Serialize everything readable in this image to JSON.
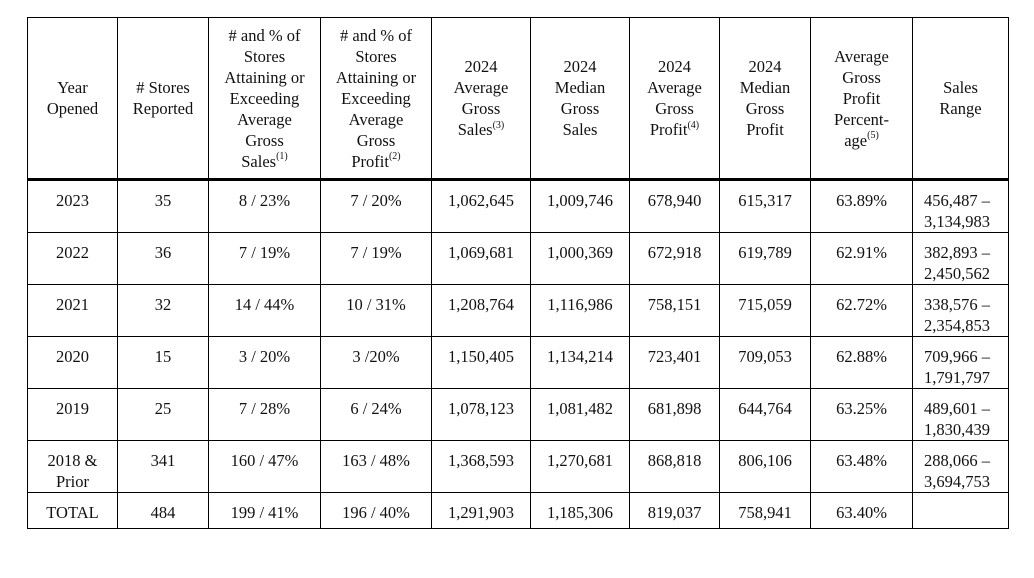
{
  "headers": [
    {
      "lines": [
        "Year",
        "Opened"
      ],
      "sup": ""
    },
    {
      "lines": [
        "# Stores",
        "Reported"
      ],
      "sup": ""
    },
    {
      "lines": [
        "# and % of",
        "Stores",
        "Attaining or",
        "Exceeding",
        "Average",
        "Gross",
        "Sales"
      ],
      "sup": "(1)"
    },
    {
      "lines": [
        "# and % of",
        "Stores",
        "Attaining or",
        "Exceeding",
        "Average",
        "Gross",
        "Profit"
      ],
      "sup": "(2)"
    },
    {
      "lines": [
        "2024",
        "Average",
        "Gross",
        "Sales"
      ],
      "sup": "(3)"
    },
    {
      "lines": [
        "2024",
        "Median",
        "Gross",
        "Sales"
      ],
      "sup": ""
    },
    {
      "lines": [
        "2024",
        "Average",
        "Gross",
        "Profit"
      ],
      "sup": "(4)"
    },
    {
      "lines": [
        "2024",
        "Median",
        "Gross",
        "Profit"
      ],
      "sup": ""
    },
    {
      "lines": [
        "Average",
        "Gross",
        "Profit",
        "Percent-",
        "age"
      ],
      "sup": "(5)"
    },
    {
      "lines": [
        "Sales",
        "Range"
      ],
      "sup": ""
    }
  ],
  "rows": [
    {
      "year": "2023",
      "stores": "35",
      "sales_attain": "8 / 23%",
      "profit_attain": "7 / 20%",
      "avg_sales": "1,062,645",
      "median_sales": "1,009,746",
      "avg_profit": "678,940",
      "median_profit": "615,317",
      "avg_pct": "63.89%",
      "range_low": "456,487 –",
      "range_high": "3,134,983"
    },
    {
      "year": "2022",
      "stores": "36",
      "sales_attain": "7 / 19%",
      "profit_attain": "7 / 19%",
      "avg_sales": "1,069,681",
      "median_sales": "1,000,369",
      "avg_profit": "672,918",
      "median_profit": "619,789",
      "avg_pct": "62.91%",
      "range_low": "382,893 –",
      "range_high": "2,450,562"
    },
    {
      "year": "2021",
      "stores": "32",
      "sales_attain": "14 / 44%",
      "profit_attain": "10 / 31%",
      "avg_sales": "1,208,764",
      "median_sales": "1,116,986",
      "avg_profit": "758,151",
      "median_profit": "715,059",
      "avg_pct": "62.72%",
      "range_low": "338,576 –",
      "range_high": "2,354,853"
    },
    {
      "year": "2020",
      "stores": "15",
      "sales_attain": "3 / 20%",
      "profit_attain": "3 /20%",
      "avg_sales": "1,150,405",
      "median_sales": "1,134,214",
      "avg_profit": "723,401",
      "median_profit": "709,053",
      "avg_pct": "62.88%",
      "range_low": "709,966 –",
      "range_high": "1,791,797"
    },
    {
      "year": "2019",
      "stores": "25",
      "sales_attain": "7 / 28%",
      "profit_attain": "6 / 24%",
      "avg_sales": "1,078,123",
      "median_sales": "1,081,482",
      "avg_profit": "681,898",
      "median_profit": "644,764",
      "avg_pct": "63.25%",
      "range_low": "489,601 –",
      "range_high": "1,830,439"
    },
    {
      "year_line1": "2018 &",
      "year_line2": "Prior",
      "stores": "341",
      "sales_attain": "160 / 47%",
      "profit_attain": "163 / 48%",
      "avg_sales": "1,368,593",
      "median_sales": "1,270,681",
      "avg_profit": "868,818",
      "median_profit": "806,106",
      "avg_pct": "63.48%",
      "range_low": "288,066 –",
      "range_high": "3,694,753"
    }
  ],
  "total": {
    "label": "TOTAL",
    "stores": "484",
    "sales_attain": "199 / 41%",
    "profit_attain": "196 / 40%",
    "avg_sales": "1,291,903",
    "median_sales": "1,185,306",
    "avg_profit": "819,037",
    "median_profit": "758,941",
    "avg_pct": "63.40%",
    "range": ""
  }
}
